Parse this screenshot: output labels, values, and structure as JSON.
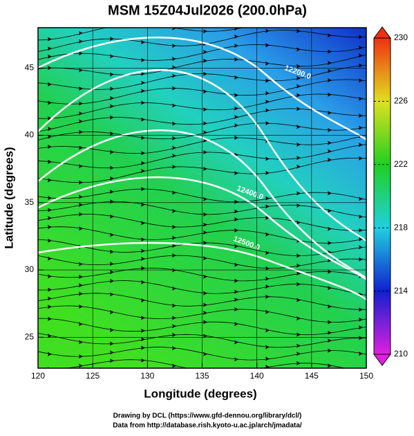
{
  "title": "MSM 15Z04Jul2026 (200.0hPa)",
  "x_axis": {
    "label": "Longitude (degrees)",
    "lim": [
      120,
      150
    ],
    "ticks": [
      120,
      125,
      130,
      135,
      140,
      145,
      150
    ]
  },
  "y_axis": {
    "label": "Latitude  (degrees)",
    "lim": [
      22.7,
      48
    ],
    "ticks": [
      25,
      30,
      35,
      40,
      45
    ]
  },
  "colorbar": {
    "lim": [
      210,
      230
    ],
    "ticks": [
      210,
      214,
      218,
      222,
      226,
      230
    ],
    "colors": [
      "#e020e0",
      "#1020d0",
      "#20d0e0",
      "#20d020",
      "#e0e020",
      "#f03010"
    ]
  },
  "contour_labels": [
    "12200.0",
    "12400.0",
    "12500.0"
  ],
  "footer": [
    "Drawing by DCL (https://www.gfd-dennou.org/library/dcl/)",
    "Data from http://database.rish.kyoto-u.ac.jp/arch/jmadata/"
  ]
}
